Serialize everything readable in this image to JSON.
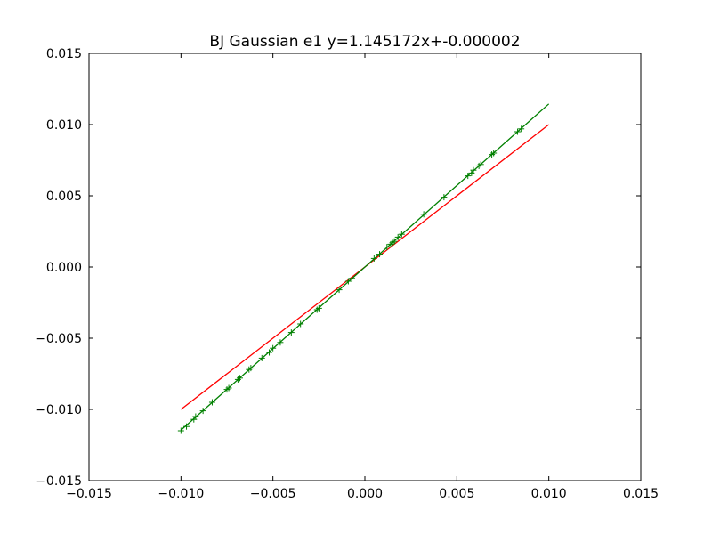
{
  "chart_data": {
    "type": "scatter",
    "title": "BJ Gaussian e1 y=1.145172x+-0.000002",
    "xlabel": "",
    "ylabel": "",
    "xlim": [
      -0.015,
      0.015
    ],
    "ylim": [
      -0.015,
      0.015
    ],
    "xticks": [
      -0.015,
      -0.01,
      -0.005,
      0.0,
      0.005,
      0.01,
      0.015
    ],
    "yticks": [
      -0.015,
      -0.01,
      -0.005,
      0.0,
      0.005,
      0.01,
      0.015
    ],
    "xtick_labels": [
      "−0.015",
      "−0.010",
      "−0.005",
      "0.000",
      "0.005",
      "0.010",
      "0.015"
    ],
    "ytick_labels": [
      "−0.015",
      "−0.010",
      "−0.005",
      "0.000",
      "0.005",
      "0.010",
      "0.015"
    ],
    "grid": false,
    "colors": {
      "reference": "#ff0000",
      "fit": "#008000",
      "points": "#008000"
    },
    "reference_line": {
      "x": [
        -0.01,
        0.01
      ],
      "y": [
        -0.01,
        0.01
      ]
    },
    "fit_line": {
      "slope": 1.145172,
      "intercept": -2e-06,
      "x": [
        -0.01,
        0.01
      ]
    },
    "series": [
      {
        "x": [
          -0.01,
          -0.0097,
          -0.0093,
          -0.0092,
          -0.0088,
          -0.0083,
          -0.0075,
          -0.0074,
          -0.0069,
          -0.0068,
          -0.0063,
          -0.0062,
          -0.0056,
          -0.0052,
          -0.005,
          -0.0046,
          -0.004,
          -0.0035,
          -0.0026,
          -0.0025,
          -0.0014,
          -0.0009,
          -0.0007,
          0.0005,
          0.0008,
          0.0012,
          0.0014,
          0.0015,
          0.0016,
          0.0018,
          0.002,
          0.0032,
          0.0043,
          0.0056,
          0.0058,
          0.0059,
          0.0062,
          0.0063,
          0.0069,
          0.007,
          0.0083,
          0.0085
        ],
        "y": [
          -0.0115,
          -0.0112,
          -0.0107,
          -0.0105,
          -0.0101,
          -0.0095,
          -0.0086,
          -0.0085,
          -0.0079,
          -0.0078,
          -0.0072,
          -0.0071,
          -0.0064,
          -0.006,
          -0.0057,
          -0.0053,
          -0.0046,
          -0.004,
          -0.003,
          -0.0029,
          -0.0016,
          -0.001,
          -0.0008,
          0.0006,
          0.0009,
          0.0014,
          0.0016,
          0.0017,
          0.0018,
          0.0021,
          0.0023,
          0.0037,
          0.0049,
          0.0064,
          0.0066,
          0.0068,
          0.0071,
          0.0072,
          0.0079,
          0.008,
          0.0095,
          0.0097
        ]
      }
    ]
  }
}
